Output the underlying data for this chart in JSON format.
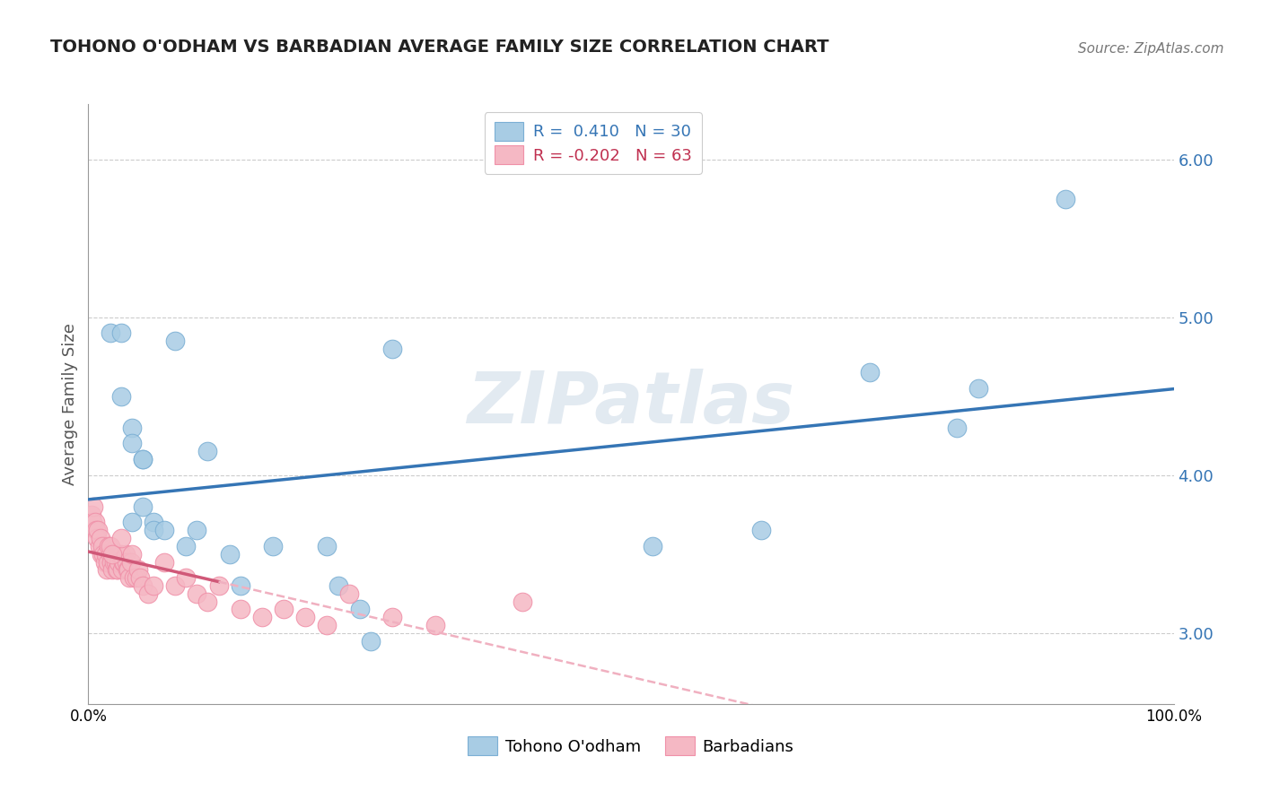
{
  "title": "TOHONO O'ODHAM VS BARBADIAN AVERAGE FAMILY SIZE CORRELATION CHART",
  "source": "Source: ZipAtlas.com",
  "ylabel": "Average Family Size",
  "yticks": [
    3.0,
    4.0,
    5.0,
    6.0
  ],
  "xlim": [
    0.0,
    1.0
  ],
  "ylim": [
    2.55,
    6.35
  ],
  "watermark": "ZIPatlas",
  "legend_r1": "R =  0.410   N = 30",
  "legend_r2": "R = -0.202   N = 63",
  "blue_color": "#a8cce4",
  "pink_color": "#f5b8c4",
  "blue_edge": "#7bafd4",
  "pink_edge": "#f090a8",
  "line_blue": "#3575b5",
  "line_pink_solid": "#d05878",
  "line_pink_dash": "#f0b0c0",
  "tohono_x": [
    0.02,
    0.03,
    0.04,
    0.05,
    0.05,
    0.06,
    0.06,
    0.07,
    0.08,
    0.09,
    0.1,
    0.11,
    0.13,
    0.14,
    0.17,
    0.22,
    0.23,
    0.25,
    0.26,
    0.28,
    0.52,
    0.62,
    0.72,
    0.8,
    0.82,
    0.9,
    0.04,
    0.05,
    0.03,
    0.04
  ],
  "tohono_y": [
    4.9,
    4.9,
    4.3,
    4.1,
    3.8,
    3.7,
    3.65,
    3.65,
    4.85,
    3.55,
    3.65,
    4.15,
    3.5,
    3.3,
    3.55,
    3.55,
    3.3,
    3.15,
    2.95,
    4.8,
    3.55,
    3.65,
    4.65,
    4.3,
    4.55,
    5.75,
    4.2,
    4.1,
    4.5,
    3.7
  ],
  "barbadian_x": [
    0.003,
    0.004,
    0.005,
    0.006,
    0.007,
    0.008,
    0.009,
    0.01,
    0.011,
    0.012,
    0.013,
    0.014,
    0.015,
    0.016,
    0.017,
    0.018,
    0.019,
    0.02,
    0.021,
    0.022,
    0.023,
    0.024,
    0.025,
    0.026,
    0.027,
    0.028,
    0.029,
    0.03,
    0.031,
    0.032,
    0.033,
    0.034,
    0.035,
    0.036,
    0.037,
    0.038,
    0.039,
    0.04,
    0.042,
    0.044,
    0.046,
    0.048,
    0.05,
    0.055,
    0.06,
    0.07,
    0.08,
    0.09,
    0.1,
    0.11,
    0.12,
    0.14,
    0.16,
    0.18,
    0.2,
    0.22,
    0.24,
    0.28,
    0.32,
    0.4,
    0.02,
    0.022,
    0.03
  ],
  "barbadian_y": [
    3.75,
    3.7,
    3.8,
    3.7,
    3.65,
    3.6,
    3.65,
    3.55,
    3.6,
    3.5,
    3.55,
    3.5,
    3.45,
    3.5,
    3.4,
    3.45,
    3.55,
    3.5,
    3.45,
    3.4,
    3.5,
    3.45,
    3.45,
    3.4,
    3.4,
    3.45,
    3.5,
    3.5,
    3.4,
    3.45,
    3.45,
    3.5,
    3.45,
    3.4,
    3.4,
    3.35,
    3.45,
    3.5,
    3.35,
    3.35,
    3.4,
    3.35,
    3.3,
    3.25,
    3.3,
    3.45,
    3.3,
    3.35,
    3.25,
    3.2,
    3.3,
    3.15,
    3.1,
    3.15,
    3.1,
    3.05,
    3.25,
    3.1,
    3.05,
    3.2,
    3.55,
    3.5,
    3.6
  ]
}
